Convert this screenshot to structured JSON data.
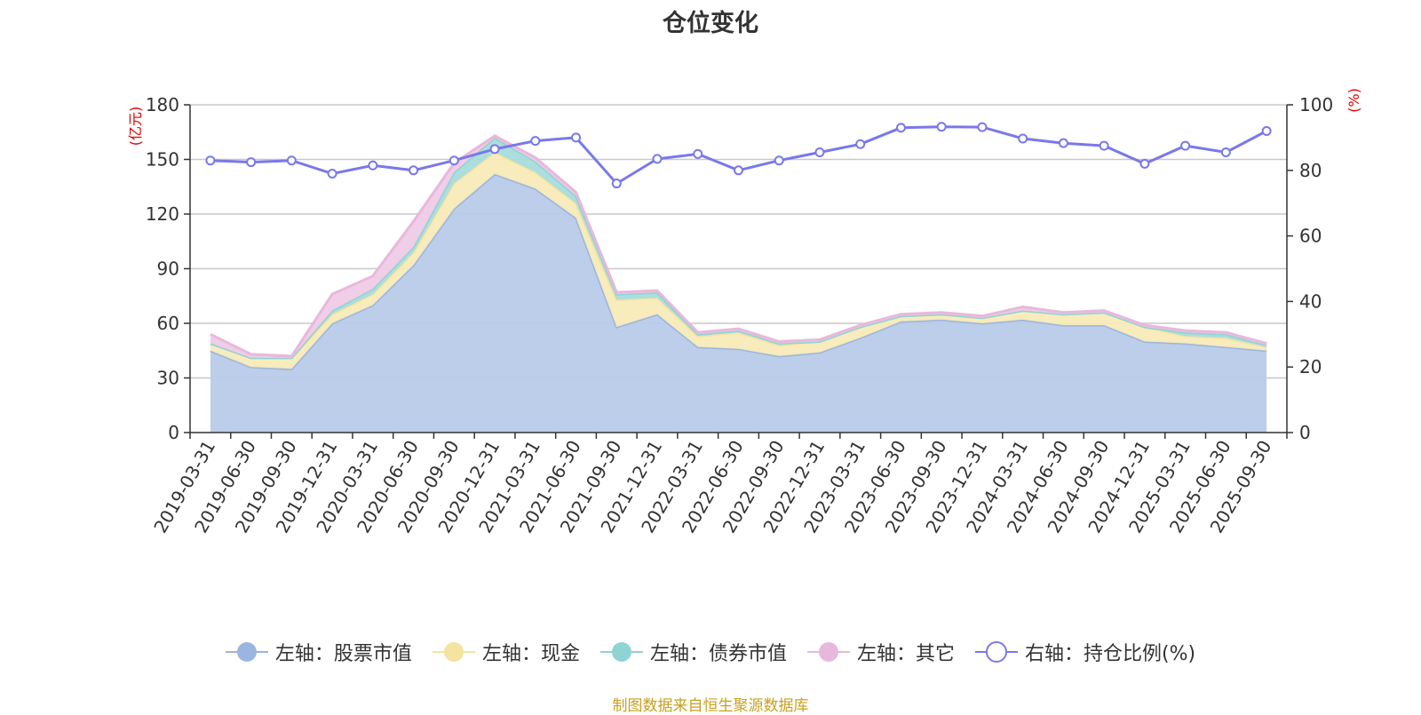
{
  "title": "仓位变化",
  "source": "制图数据来自恒生聚源数据库",
  "chart_data": {
    "type": "area",
    "title": "仓位变化",
    "categories": [
      "2019-03-31",
      "2019-06-30",
      "2019-09-30",
      "2019-12-31",
      "2020-03-31",
      "2020-06-30",
      "2020-09-30",
      "2020-12-31",
      "2021-03-31",
      "2021-06-30",
      "2021-09-30",
      "2021-12-31",
      "2022-03-31",
      "2022-06-30",
      "2022-09-30",
      "2022-12-31",
      "2023-03-31",
      "2023-06-30",
      "2023-09-30",
      "2023-12-31",
      "2024-03-31",
      "2024-06-30",
      "2024-09-30",
      "2024-12-31",
      "2025-03-31",
      "2025-06-30",
      "2025-09-30"
    ],
    "x_tick_labels": [
      "2019-03-31",
      "2019-06-30",
      "2019-09-30",
      "2019-12-31",
      "2020-03-31",
      "2020-06-30",
      "2020-09-30",
      "2020-12-31",
      "2021-03-31",
      "2021-06-30",
      "2021-09-30",
      "2021-12-31",
      "2022-03-31",
      "2022-06-30",
      "2022-09-30",
      "2022-12-31",
      "2023-03-31",
      "2023-06-30",
      "2023-09-30",
      "2023-12-31",
      "2024-03-31",
      "2024-06-30",
      "2024-09-30",
      "2024-12-31",
      "2025-03-31",
      "2025-06-30",
      "2025-09-30"
    ],
    "left_axis": {
      "unit": "(亿元)",
      "ylim": [
        0,
        180
      ],
      "ticks": [
        "0",
        "30",
        "60",
        "90",
        "120",
        "150",
        "180"
      ]
    },
    "right_axis": {
      "unit": "(%)",
      "ylim": [
        0,
        100
      ],
      "ticks": [
        "0",
        "20",
        "40",
        "60",
        "80",
        "100"
      ]
    },
    "stacked_series": [
      {
        "name": "股票市值",
        "legend": "左轴：股票市值",
        "color": "#9bb5e0",
        "fill": "#b8cbe9",
        "values": [
          45,
          36,
          35,
          60,
          70,
          92,
          123,
          142,
          134,
          118,
          58,
          65,
          47,
          46,
          42,
          44,
          52,
          61,
          62,
          60,
          62,
          59,
          59,
          50,
          49,
          47,
          45
        ]
      },
      {
        "name": "现金",
        "legend": "左轴：现金",
        "color": "#f5e3a0",
        "fill": "#f8ebb8",
        "values": [
          4,
          5,
          6,
          5,
          6,
          7,
          14,
          12,
          9,
          8,
          15,
          9,
          6,
          9,
          6,
          6,
          6,
          3,
          3,
          3,
          5,
          6,
          7,
          8,
          4,
          5,
          2
        ]
      },
      {
        "name": "债券市值",
        "legend": "左轴：债券市值",
        "color": "#8fd3d3",
        "fill": "#a8dcdc",
        "values": [
          0,
          0,
          0,
          2,
          3,
          3,
          6,
          8,
          6,
          4,
          3,
          3,
          1,
          1,
          1,
          0,
          0,
          0,
          0,
          0,
          0,
          0,
          0,
          0,
          2,
          2,
          1
        ]
      },
      {
        "name": "其它",
        "legend": "左轴：其它",
        "color": "#e8b8dc",
        "fill": "#efcbe6",
        "values": [
          5,
          2,
          1,
          9,
          7,
          14,
          5,
          1,
          2,
          2,
          1,
          1,
          1,
          1,
          1,
          1,
          1,
          1,
          1,
          1,
          2,
          1,
          1,
          1,
          1,
          1,
          1
        ]
      }
    ],
    "line_series": {
      "name": "持仓比例(%)",
      "legend": "右轴：持仓比例(%)",
      "color": "#7a78ea",
      "values": [
        83,
        82.5,
        83,
        79,
        81.5,
        80,
        83,
        86.5,
        89,
        90,
        76,
        83.5,
        85,
        80,
        83,
        85.5,
        88,
        93,
        93.3,
        93.2,
        89.7,
        88.3,
        87.5,
        82,
        87.5,
        85.5,
        92
      ]
    },
    "grid": true,
    "legend_position": "bottom"
  }
}
